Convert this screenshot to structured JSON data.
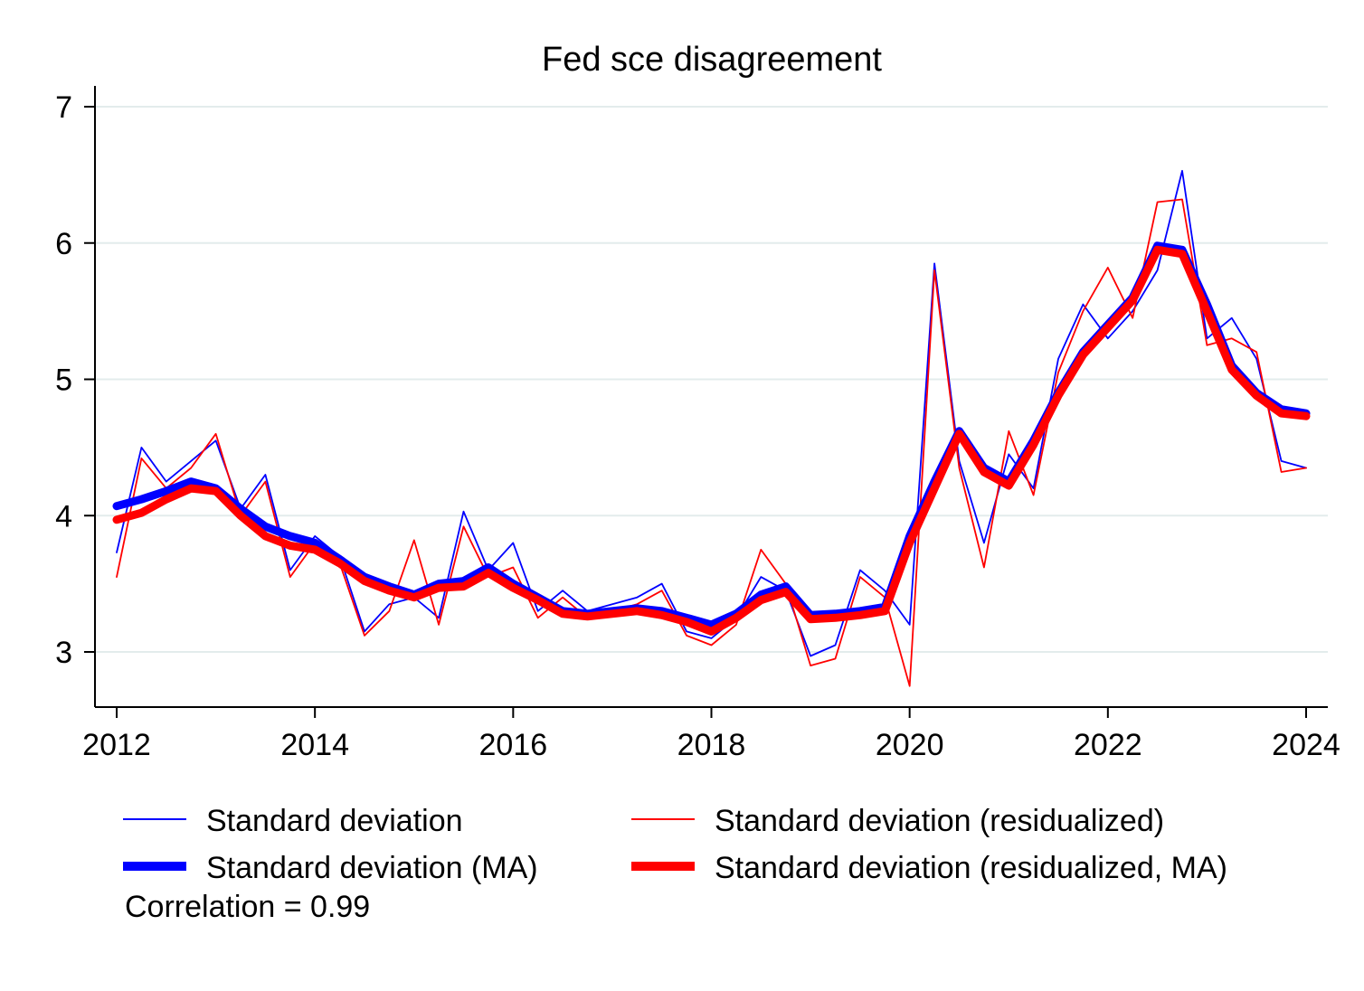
{
  "chart_data": {
    "type": "line",
    "title": "Fed sce disagreement",
    "xlabel": "",
    "ylabel": "",
    "xlim": [
      2012,
      2024
    ],
    "ylim": [
      2.6,
      7.1
    ],
    "x_ticks": [
      2012,
      2014,
      2016,
      2018,
      2020,
      2022,
      2024
    ],
    "x_tick_labels": [
      "2012",
      "2014",
      "2016",
      "2018",
      "2020",
      "2022",
      "2024"
    ],
    "y_ticks": [
      3,
      4,
      5,
      6,
      7
    ],
    "y_tick_labels": [
      "3",
      "4",
      "5",
      "6",
      "7"
    ],
    "grid": "horizontal",
    "x": [
      2012.0,
      2012.25,
      2012.5,
      2012.75,
      2013.0,
      2013.25,
      2013.5,
      2013.75,
      2014.0,
      2014.25,
      2014.5,
      2014.75,
      2015.0,
      2015.25,
      2015.5,
      2015.75,
      2016.0,
      2016.25,
      2016.5,
      2016.75,
      2017.0,
      2017.25,
      2017.5,
      2017.75,
      2018.0,
      2018.25,
      2018.5,
      2018.75,
      2019.0,
      2019.25,
      2019.5,
      2019.75,
      2020.0,
      2020.25,
      2020.5,
      2020.75,
      2021.0,
      2021.25,
      2021.5,
      2021.75,
      2022.0,
      2022.25,
      2022.5,
      2022.75,
      2023.0,
      2023.25,
      2023.5,
      2023.75,
      2024.0
    ],
    "series": [
      {
        "name": "Standard deviation",
        "color": "#0000ff",
        "width": "thin",
        "values": [
          3.73,
          4.5,
          4.25,
          4.4,
          4.55,
          4.05,
          4.3,
          3.6,
          3.85,
          3.7,
          3.15,
          3.35,
          3.4,
          3.25,
          4.03,
          3.6,
          3.8,
          3.3,
          3.45,
          3.3,
          3.35,
          3.4,
          3.5,
          3.15,
          3.1,
          3.25,
          3.55,
          3.45,
          2.97,
          3.05,
          3.6,
          3.45,
          3.2,
          5.85,
          4.4,
          3.8,
          4.45,
          4.2,
          5.15,
          5.55,
          5.3,
          5.5,
          5.8,
          6.53,
          5.3,
          5.45,
          5.15,
          4.4,
          4.35
        ]
      },
      {
        "name": "Standard deviation (residualized)",
        "color": "#ff0000",
        "width": "thin",
        "values": [
          3.55,
          4.42,
          4.2,
          4.35,
          4.6,
          4.0,
          4.25,
          3.55,
          3.8,
          3.65,
          3.12,
          3.3,
          3.82,
          3.2,
          3.92,
          3.55,
          3.62,
          3.25,
          3.4,
          3.25,
          3.3,
          3.35,
          3.45,
          3.12,
          3.05,
          3.2,
          3.75,
          3.5,
          2.9,
          2.95,
          3.55,
          3.4,
          2.75,
          5.8,
          4.35,
          3.62,
          4.62,
          4.15,
          5.05,
          5.5,
          5.82,
          5.45,
          6.3,
          6.32,
          5.25,
          5.3,
          5.2,
          4.32,
          4.35
        ]
      },
      {
        "name": "Standard deviation (MA)",
        "color": "#0000ff",
        "width": "thick",
        "values": [
          4.07,
          4.12,
          4.18,
          4.25,
          4.2,
          4.05,
          3.92,
          3.85,
          3.8,
          3.68,
          3.55,
          3.48,
          3.42,
          3.5,
          3.52,
          3.62,
          3.5,
          3.4,
          3.3,
          3.28,
          3.3,
          3.32,
          3.3,
          3.25,
          3.2,
          3.28,
          3.42,
          3.48,
          3.27,
          3.28,
          3.3,
          3.33,
          3.85,
          4.25,
          4.62,
          4.35,
          4.25,
          4.55,
          4.9,
          5.2,
          5.4,
          5.6,
          5.98,
          5.95,
          5.55,
          5.1,
          4.9,
          4.78,
          4.75
        ]
      },
      {
        "name": "Standard deviation (residualized, MA)",
        "color": "#ff0000",
        "width": "thick",
        "values": [
          3.97,
          4.02,
          4.12,
          4.2,
          4.18,
          4.0,
          3.85,
          3.78,
          3.75,
          3.65,
          3.52,
          3.45,
          3.4,
          3.47,
          3.48,
          3.58,
          3.47,
          3.38,
          3.28,
          3.26,
          3.28,
          3.3,
          3.27,
          3.22,
          3.15,
          3.25,
          3.38,
          3.44,
          3.24,
          3.25,
          3.27,
          3.3,
          3.8,
          4.2,
          4.6,
          4.32,
          4.22,
          4.52,
          4.88,
          5.18,
          5.38,
          5.58,
          5.95,
          5.92,
          5.5,
          5.07,
          4.88,
          4.75,
          4.73
        ]
      }
    ],
    "legend": {
      "placement": "bottom",
      "entries": [
        "Standard deviation",
        "Standard deviation (residualized)",
        "Standard deviation (MA)",
        "Standard deviation (residualized, MA)"
      ]
    },
    "annotation": "Correlation = 0.99"
  }
}
